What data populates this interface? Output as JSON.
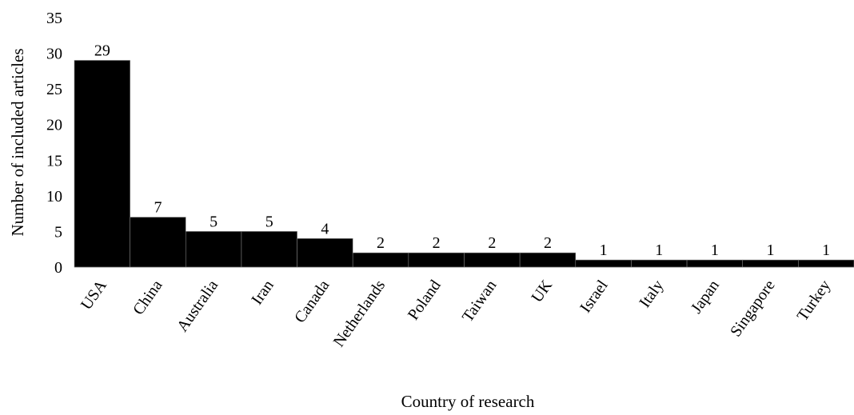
{
  "chart_data": {
    "type": "bar",
    "title": "",
    "xlabel": "Country of research",
    "ylabel": "Number of included articles",
    "categories": [
      "USA",
      "China",
      "Australia",
      "Iran",
      "Canada",
      "Netherlands",
      "Poland",
      "Taiwan",
      "UK",
      "Israel",
      "Italy",
      "Japan",
      "Singapore",
      "Turkey"
    ],
    "values": [
      29,
      7,
      5,
      5,
      4,
      2,
      2,
      2,
      2,
      1,
      1,
      1,
      1,
      1
    ],
    "ylim": [
      0,
      35
    ],
    "yticks": [
      0,
      5,
      10,
      15,
      20,
      25,
      30,
      35
    ],
    "grid": false,
    "legend": "none",
    "bar_color": "#000000",
    "bar_edge_color": "#7f7f7f",
    "axis_color": "#bfbfbf"
  }
}
